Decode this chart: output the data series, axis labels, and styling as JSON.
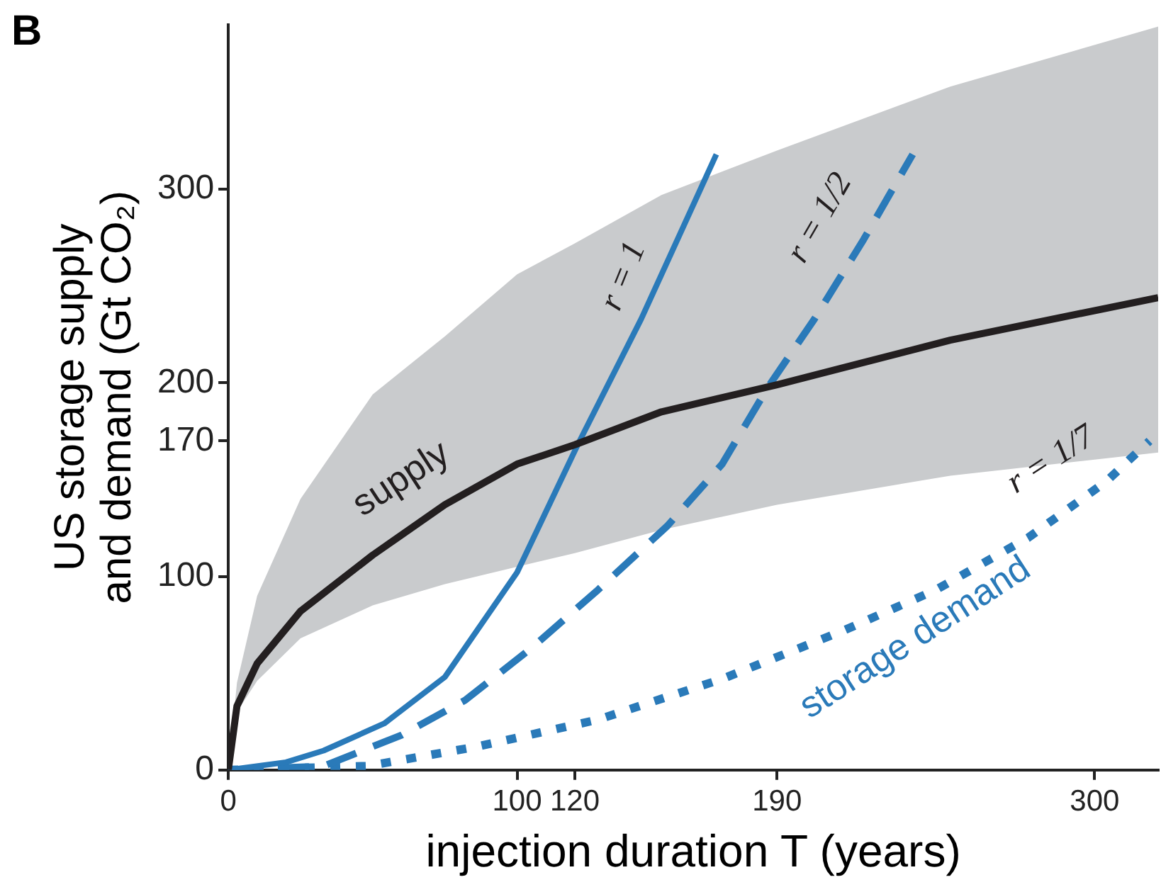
{
  "chart_data": {
    "type": "line",
    "title": "B",
    "xlabel": "injection duration T (years)",
    "ylabel": "US storage supply and demand (Gt CO₂)",
    "xlim": [
      0,
      322
    ],
    "xticks": [
      0,
      100,
      120,
      190,
      300
    ],
    "ylim": [
      0,
      385
    ],
    "yticks": [
      0,
      100,
      170,
      200,
      300
    ],
    "grid": false,
    "legend": false,
    "marker": "none",
    "series": [
      {
        "color": "#231f20",
        "line_style": "solid",
        "x": [
          0,
          3,
          10,
          25,
          50,
          75,
          100,
          120,
          150,
          190,
          250,
          322
        ],
        "values": [
          0,
          33,
          55,
          82,
          111,
          137,
          158,
          168,
          185,
          199,
          222,
          244
        ],
        "lower": [
          0,
          30,
          46,
          68,
          85,
          96,
          105,
          112,
          124,
          137,
          152,
          164
        ],
        "upper": [
          0,
          45,
          90,
          140,
          194,
          224,
          256,
          272,
          297,
          320,
          353,
          384
        ]
      },
      {
        "color": "#2a7ab9",
        "line_style": "solid",
        "x": [
          0,
          20,
          33,
          54,
          75,
          100,
          121,
          143,
          169
        ],
        "values": [
          0,
          4,
          10,
          24,
          48,
          102,
          168,
          233,
          318
        ]
      },
      {
        "color": "#2a7ab9",
        "line_style": "dashed",
        "x": [
          0,
          33,
          60,
          82,
          105,
          128,
          152,
          171,
          187,
          203,
          220,
          237
        ],
        "values": [
          0,
          2,
          18,
          36,
          63,
          93,
          126,
          158,
          198,
          233,
          274,
          318
        ]
      },
      {
        "color": "#2a7ab9",
        "line_style": "dotted",
        "x": [
          0,
          48,
          86,
          128,
          171,
          213,
          245,
          277,
          304,
          319
        ],
        "values": [
          0,
          2,
          12,
          26,
          47,
          72,
          93,
          120,
          149,
          170
        ]
      }
    ],
    "annotations": [
      "supply",
      "r = 1",
      "r = 1/2",
      "r = 1/7",
      "storage demand"
    ]
  }
}
